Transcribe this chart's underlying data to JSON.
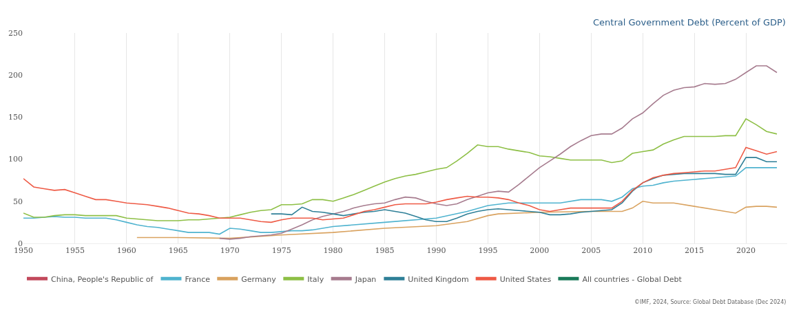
{
  "chart_data": {
    "type": "line",
    "title": "Central Government Debt (Percent of GDP)",
    "annotations": [
      "©IMF, 2024, Source: Global Debt Database (Dec 2024)"
    ],
    "xlim": [
      1950,
      2024
    ],
    "xticks": [
      1950,
      1955,
      1960,
      1965,
      1970,
      1975,
      1980,
      1985,
      1990,
      1995,
      2000,
      2005,
      2010,
      2015,
      2020
    ],
    "ylim": [
      0,
      250
    ],
    "yticks": [
      0,
      50,
      100,
      150,
      200,
      250
    ],
    "grid": "x",
    "legend": "bottom",
    "marker": "none",
    "line_style": "solid",
    "series": [
      {
        "name": "China, People's Republic of",
        "color": "#c2495c"
      },
      {
        "name": "France",
        "color": "#4fb3cf",
        "x": [
          1950,
          1951,
          1952,
          1953,
          1954,
          1955,
          1956,
          1957,
          1958,
          1959,
          1960,
          1961,
          1962,
          1963,
          1964,
          1965,
          1966,
          1967,
          1968,
          1969,
          1970,
          1971,
          1972,
          1973,
          1974,
          1975,
          1976,
          1977,
          1978,
          1980,
          1985,
          1990,
          1993,
          1995,
          1997,
          2000,
          2002,
          2004,
          2006,
          2007,
          2008,
          2009,
          2010,
          2011,
          2012,
          2013,
          2014,
          2015,
          2016,
          2017,
          2018,
          2019,
          2020,
          2021,
          2022,
          2023
        ],
        "values": [
          30,
          30,
          31,
          32,
          31,
          31,
          30,
          30,
          30,
          28,
          25,
          22,
          20,
          19,
          17,
          15,
          13,
          13,
          13,
          11,
          18,
          17,
          15,
          13,
          13,
          14,
          15,
          15,
          16,
          20,
          25,
          30,
          38,
          45,
          48,
          48,
          48,
          52,
          52,
          50,
          55,
          65,
          68,
          69,
          72,
          74,
          75,
          76,
          77,
          78,
          79,
          80,
          90,
          90,
          90,
          90
        ]
      },
      {
        "name": "Germany",
        "color": "#d9a25f",
        "x": [
          1961,
          1965,
          1970,
          1975,
          1980,
          1985,
          1990,
          1993,
          1995,
          1996,
          2000,
          2005,
          2008,
          2009,
          2010,
          2011,
          2013,
          2015,
          2017,
          2019,
          2020,
          2021,
          2022,
          2023
        ],
        "values": [
          7,
          7,
          6,
          10,
          13,
          18,
          21,
          26,
          33,
          35,
          37,
          38,
          38,
          42,
          50,
          48,
          48,
          44,
          40,
          36,
          43,
          44,
          44,
          43
        ]
      },
      {
        "name": "Italy",
        "color": "#8dbf45",
        "x": [
          1950,
          1951,
          1952,
          1953,
          1954,
          1955,
          1956,
          1957,
          1958,
          1959,
          1960,
          1961,
          1962,
          1963,
          1964,
          1965,
          1966,
          1967,
          1968,
          1969,
          1970,
          1971,
          1972,
          1973,
          1974,
          1975,
          1976,
          1977,
          1978,
          1979,
          1980,
          1981,
          1982,
          1983,
          1984,
          1985,
          1986,
          1987,
          1988,
          1989,
          1990,
          1991,
          1992,
          1993,
          1994,
          1995,
          1996,
          1997,
          1998,
          1999,
          2000,
          2001,
          2002,
          2003,
          2004,
          2005,
          2006,
          2007,
          2008,
          2009,
          2010,
          2011,
          2012,
          2013,
          2014,
          2015,
          2016,
          2017,
          2018,
          2019,
          2020,
          2021,
          2022,
          2023
        ],
        "values": [
          36,
          31,
          31,
          33,
          34,
          34,
          33,
          33,
          33,
          33,
          30,
          29,
          28,
          27,
          27,
          27,
          28,
          28,
          29,
          30,
          31,
          34,
          37,
          39,
          40,
          46,
          46,
          47,
          52,
          52,
          50,
          54,
          58,
          63,
          68,
          73,
          77,
          80,
          82,
          85,
          88,
          90,
          98,
          107,
          117,
          115,
          115,
          112,
          110,
          108,
          104,
          103,
          101,
          99,
          99,
          99,
          99,
          96,
          98,
          107,
          109,
          111,
          118,
          123,
          127,
          127,
          127,
          127,
          128,
          128,
          148,
          141,
          133,
          130
        ]
      },
      {
        "name": "Japan",
        "color": "#a67b8e",
        "x": [
          1969,
          1970,
          1971,
          1972,
          1973,
          1974,
          1975,
          1976,
          1977,
          1978,
          1979,
          1980,
          1981,
          1982,
          1983,
          1984,
          1985,
          1986,
          1987,
          1988,
          1989,
          1990,
          1991,
          1992,
          1993,
          1994,
          1995,
          1996,
          1997,
          1998,
          1999,
          2000,
          2001,
          2002,
          2003,
          2004,
          2005,
          2006,
          2007,
          2008,
          2009,
          2010,
          2011,
          2012,
          2013,
          2014,
          2015,
          2016,
          2017,
          2018,
          2019,
          2020,
          2021,
          2022,
          2023
        ],
        "values": [
          6,
          5,
          6,
          8,
          9,
          10,
          12,
          17,
          22,
          28,
          32,
          35,
          38,
          42,
          45,
          47,
          48,
          52,
          55,
          54,
          50,
          47,
          45,
          47,
          52,
          56,
          60,
          62,
          61,
          70,
          80,
          90,
          98,
          106,
          115,
          122,
          128,
          130,
          130,
          137,
          148,
          155,
          166,
          176,
          182,
          185,
          186,
          190,
          189,
          190,
          195,
          203,
          211,
          211,
          203
        ]
      },
      {
        "name": "United Kingdom",
        "color": "#2e7f97",
        "x": [
          1974,
          1975,
          1976,
          1977,
          1978,
          1979,
          1980,
          1981,
          1982,
          1983,
          1984,
          1985,
          1986,
          1987,
          1988,
          1989,
          1990,
          1991,
          1992,
          1993,
          1994,
          1995,
          1996,
          1997,
          1998,
          1999,
          2000,
          2001,
          2002,
          2003,
          2004,
          2005,
          2006,
          2007,
          2008,
          2009,
          2010,
          2011,
          2012,
          2013,
          2014,
          2015,
          2016,
          2017,
          2018,
          2019,
          2020,
          2021,
          2022,
          2023
        ],
        "values": [
          35,
          35,
          34,
          43,
          38,
          37,
          35,
          33,
          35,
          37,
          38,
          40,
          38,
          36,
          32,
          28,
          26,
          26,
          30,
          35,
          38,
          40,
          41,
          40,
          39,
          38,
          37,
          34,
          34,
          35,
          37,
          38,
          39,
          40,
          48,
          62,
          72,
          77,
          81,
          82,
          83,
          83,
          83,
          83,
          82,
          82,
          102,
          102,
          97,
          97
        ]
      },
      {
        "name": "United States",
        "color": "#ee5a45",
        "x": [
          1950,
          1951,
          1952,
          1953,
          1954,
          1955,
          1956,
          1957,
          1958,
          1959,
          1960,
          1961,
          1962,
          1963,
          1964,
          1965,
          1966,
          1967,
          1968,
          1969,
          1970,
          1971,
          1972,
          1973,
          1974,
          1975,
          1976,
          1977,
          1978,
          1979,
          1980,
          1981,
          1982,
          1983,
          1984,
          1985,
          1986,
          1987,
          1988,
          1989,
          1990,
          1991,
          1992,
          1993,
          1994,
          1995,
          1996,
          1997,
          1998,
          1999,
          2000,
          2001,
          2002,
          2003,
          2004,
          2005,
          2006,
          2007,
          2008,
          2009,
          2010,
          2011,
          2012,
          2013,
          2014,
          2015,
          2016,
          2017,
          2018,
          2019,
          2020,
          2021,
          2022,
          2023
        ],
        "values": [
          77,
          67,
          65,
          63,
          64,
          60,
          56,
          52,
          52,
          50,
          48,
          47,
          46,
          44,
          42,
          39,
          36,
          35,
          33,
          30,
          30,
          30,
          28,
          26,
          25,
          28,
          30,
          30,
          30,
          28,
          29,
          30,
          34,
          38,
          40,
          43,
          46,
          47,
          47,
          47,
          49,
          52,
          54,
          56,
          55,
          55,
          54,
          52,
          48,
          45,
          40,
          38,
          40,
          42,
          42,
          42,
          42,
          42,
          50,
          63,
          72,
          78,
          81,
          83,
          84,
          85,
          86,
          86,
          88,
          90,
          114,
          110,
          106,
          109
        ]
      },
      {
        "name": "All countries - Global Debt",
        "color": "#1a7a5a"
      }
    ]
  }
}
